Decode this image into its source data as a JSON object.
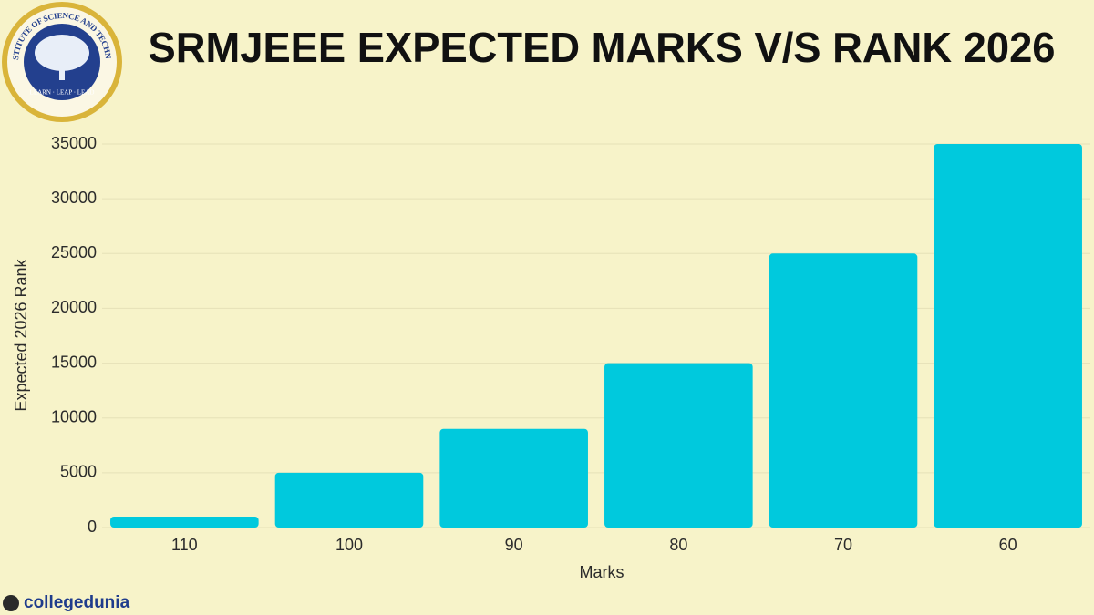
{
  "chart_data": {
    "type": "bar",
    "title": "SRMJEEE EXPECTED MARKS V/S RANK 2026",
    "x_label": "Marks",
    "y_label": "Expected 2026 Rank",
    "categories": [
      "110",
      "100",
      "90",
      "80",
      "70",
      "60"
    ],
    "values": [
      1000,
      5000,
      9000,
      15000,
      25000,
      35000
    ],
    "color": "#00c9dd",
    "ylim": [
      0,
      35000
    ],
    "yticks": [
      0,
      5000,
      10000,
      15000,
      20000,
      25000,
      30000,
      35000
    ],
    "grid": true
  },
  "branding": {
    "logo_name": "SRM INSTITUTE OF SCIENCE AND TECHNOLOGY",
    "logo_motto": "LEARN · LEAP · LEAD",
    "watermark": "collegedunia"
  }
}
